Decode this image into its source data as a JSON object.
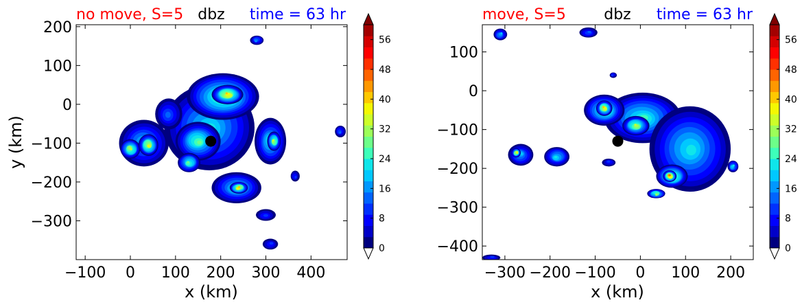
{
  "colors": {
    "red_label": "#ff0000",
    "blue_label": "#0000ff",
    "text": "#000000",
    "storm_center": "#000000",
    "colormap": [
      "#ffffff",
      "#00007f",
      "#0000c8",
      "#0000ff",
      "#0030ff",
      "#0064ff",
      "#0098ff",
      "#00c8ff",
      "#0fe6ea",
      "#3dffba",
      "#6dff89",
      "#9dff59",
      "#cdff29",
      "#f4f802",
      "#ffc800",
      "#ff9800",
      "#ff6400",
      "#ff3000",
      "#ff0000",
      "#d40000",
      "#a30000",
      "#7f0000"
    ]
  },
  "chart_data": [
    {
      "type": "filled-contour",
      "title_left": "no move, S=5",
      "title_center": "dbz",
      "title_right": "time = 63 hr",
      "xlabel": "x (km)",
      "ylabel": "y (km)",
      "xlim": [
        -120,
        480
      ],
      "ylim": [
        -400,
        205
      ],
      "xticks": [
        -100,
        0,
        100,
        200,
        300,
        400
      ],
      "yticks": [
        -300,
        -200,
        -100,
        0,
        100,
        200
      ],
      "xtick_labels": [
        "−100",
        "0",
        "100",
        "200",
        "300",
        "400"
      ],
      "ytick_labels": [
        "−300",
        "−200",
        "−100",
        "0",
        "100",
        "200"
      ],
      "storm_center": {
        "x": 178,
        "y": -95
      },
      "colorbar": {
        "min": 0,
        "max": 60,
        "ticks": [
          0,
          8,
          16,
          24,
          32,
          40,
          48,
          56
        ],
        "tick_labels": [
          "0",
          "8",
          "16",
          "24",
          "32",
          "40",
          "48",
          "56"
        ],
        "extend": "both"
      },
      "cells": [
        {
          "x": 175,
          "y": -60,
          "rx": 100,
          "ry": 110,
          "dbz": 24
        },
        {
          "x": 205,
          "y": 20,
          "rx": 80,
          "ry": 60,
          "dbz": 32
        },
        {
          "x": 215,
          "y": 25,
          "rx": 35,
          "ry": 25,
          "dbz": 42
        },
        {
          "x": 150,
          "y": -95,
          "rx": 50,
          "ry": 50,
          "dbz": 30
        },
        {
          "x": 30,
          "y": -100,
          "rx": 55,
          "ry": 60,
          "dbz": 20
        },
        {
          "x": 0,
          "y": -115,
          "rx": 22,
          "ry": 25,
          "dbz": 36
        },
        {
          "x": 40,
          "y": -105,
          "rx": 22,
          "ry": 28,
          "dbz": 38
        },
        {
          "x": 310,
          "y": -95,
          "rx": 35,
          "ry": 60,
          "dbz": 24
        },
        {
          "x": 318,
          "y": -95,
          "rx": 15,
          "ry": 25,
          "dbz": 36
        },
        {
          "x": 130,
          "y": -150,
          "rx": 25,
          "ry": 25,
          "dbz": 28
        },
        {
          "x": 235,
          "y": -215,
          "rx": 55,
          "ry": 40,
          "dbz": 24
        },
        {
          "x": 240,
          "y": -215,
          "rx": 20,
          "ry": 15,
          "dbz": 42
        },
        {
          "x": 85,
          "y": -25,
          "rx": 30,
          "ry": 40,
          "dbz": 14
        },
        {
          "x": 300,
          "y": -285,
          "rx": 22,
          "ry": 15,
          "dbz": 12
        },
        {
          "x": 310,
          "y": -360,
          "rx": 17,
          "ry": 14,
          "dbz": 12
        },
        {
          "x": 280,
          "y": 165,
          "rx": 15,
          "ry": 12,
          "dbz": 16
        },
        {
          "x": 465,
          "y": -70,
          "rx": 12,
          "ry": 15,
          "dbz": 14
        },
        {
          "x": 365,
          "y": -185,
          "rx": 10,
          "ry": 14,
          "dbz": 10
        }
      ]
    },
    {
      "type": "filled-contour",
      "title_left": "move, S=5",
      "title_center": "dbz",
      "title_right": "time = 63 hr",
      "xlabel": "x (km)",
      "ylabel": "",
      "xlim": [
        -350,
        250
      ],
      "ylim": [
        -435,
        170
      ],
      "xticks": [
        -300,
        -200,
        -100,
        0,
        100,
        200
      ],
      "yticks": [
        -400,
        -300,
        -200,
        -100,
        0,
        100
      ],
      "xtick_labels": [
        "−300",
        "−200",
        "−100",
        "0",
        "100",
        "200"
      ],
      "ytick_labels": [
        "−400",
        "−300",
        "−200",
        "−100",
        "0",
        "100"
      ],
      "storm_center": {
        "x": -50,
        "y": -130
      },
      "colorbar": {
        "min": 0,
        "max": 60,
        "ticks": [
          0,
          8,
          16,
          24,
          32,
          40,
          48,
          56
        ],
        "tick_labels": [
          "0",
          "8",
          "16",
          "24",
          "32",
          "40",
          "48",
          "56"
        ],
        "extend": "both"
      },
      "cells": [
        {
          "x": 5,
          "y": -70,
          "rx": 85,
          "ry": 65,
          "dbz": 26
        },
        {
          "x": -80,
          "y": -50,
          "rx": 45,
          "ry": 40,
          "dbz": 30
        },
        {
          "x": -80,
          "y": -45,
          "rx": 18,
          "ry": 20,
          "dbz": 42
        },
        {
          "x": -10,
          "y": -90,
          "rx": 30,
          "ry": 25,
          "dbz": 36
        },
        {
          "x": 110,
          "y": -150,
          "rx": 90,
          "ry": 110,
          "dbz": 24
        },
        {
          "x": 70,
          "y": -220,
          "rx": 35,
          "ry": 30,
          "dbz": 36
        },
        {
          "x": 65,
          "y": -220,
          "rx": 15,
          "ry": 15,
          "dbz": 46
        },
        {
          "x": 35,
          "y": -265,
          "rx": 20,
          "ry": 12,
          "dbz": 32
        },
        {
          "x": -265,
          "y": -165,
          "rx": 28,
          "ry": 28,
          "dbz": 20
        },
        {
          "x": -275,
          "y": -160,
          "rx": 10,
          "ry": 12,
          "dbz": 38
        },
        {
          "x": -185,
          "y": -170,
          "rx": 28,
          "ry": 25,
          "dbz": 24
        },
        {
          "x": 205,
          "y": -195,
          "rx": 12,
          "ry": 15,
          "dbz": 22
        },
        {
          "x": -310,
          "y": 145,
          "rx": 15,
          "ry": 15,
          "dbz": 20
        },
        {
          "x": -115,
          "y": 150,
          "rx": 20,
          "ry": 13,
          "dbz": 14
        },
        {
          "x": -330,
          "y": -430,
          "rx": 20,
          "ry": 8,
          "dbz": 10
        },
        {
          "x": -70,
          "y": -185,
          "rx": 15,
          "ry": 10,
          "dbz": 12
        },
        {
          "x": -60,
          "y": 40,
          "rx": 8,
          "ry": 7,
          "dbz": 12
        }
      ]
    }
  ]
}
